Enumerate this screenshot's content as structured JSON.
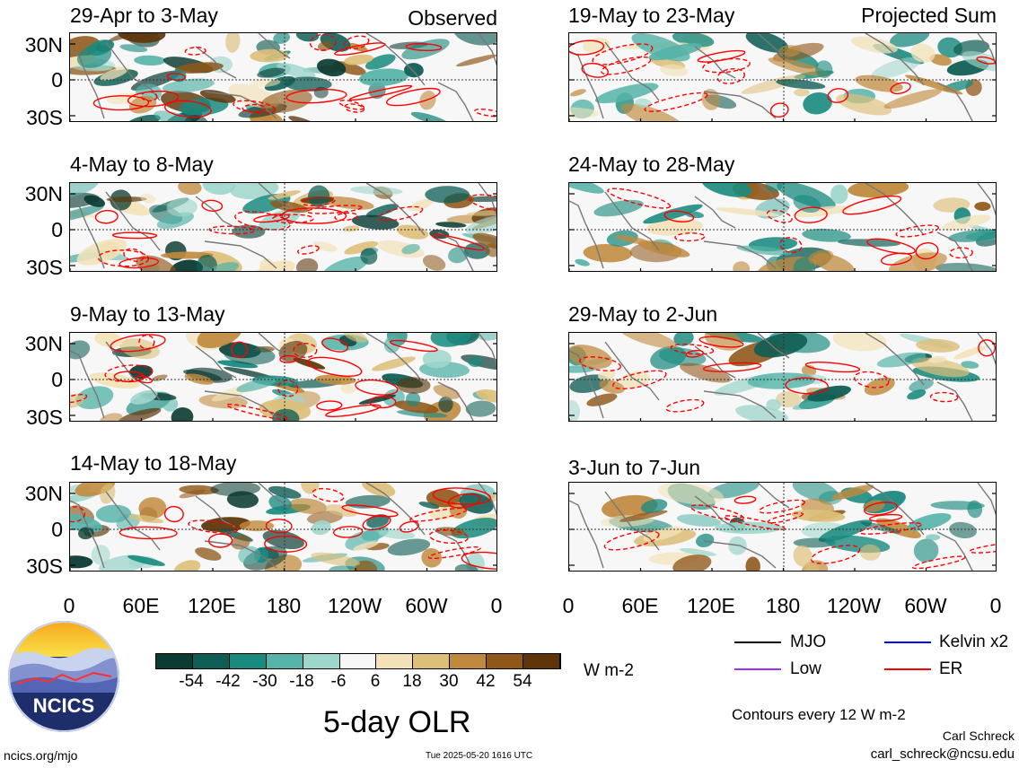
{
  "panels_left": [
    {
      "title": "29-Apr to 3-May",
      "corner": "Observed"
    },
    {
      "title": "4-May to 8-May",
      "corner": ""
    },
    {
      "title": "9-May to 13-May",
      "corner": ""
    },
    {
      "title": "14-May to 18-May",
      "corner": ""
    }
  ],
  "panels_right": [
    {
      "title": "19-May to 23-May",
      "corner": "Projected Sum"
    },
    {
      "title": "24-May to 28-May",
      "corner": ""
    },
    {
      "title": "29-May to 2-Jun",
      "corner": ""
    },
    {
      "title": "3-Jun to 7-Jun",
      "corner": ""
    }
  ],
  "lat_labels": [
    "30N",
    "0",
    "30S"
  ],
  "lon_labels": [
    "0",
    "60E",
    "120E",
    "180",
    "120W",
    "60W",
    "0"
  ],
  "colorbar": {
    "labels": [
      "-54",
      "-42",
      "-30",
      "-18",
      "-6",
      "6",
      "18",
      "30",
      "42",
      "54"
    ],
    "colors": [
      "#0b3b33",
      "#0f5e55",
      "#1a8a7f",
      "#55b3a8",
      "#9fd6cc",
      "#f7f7f7",
      "#f3e2b8",
      "#ddbf7a",
      "#c08a3e",
      "#8f5718",
      "#5e3509"
    ],
    "unit": "W m-2"
  },
  "chart_title": "5-day OLR",
  "legend": [
    {
      "label": "MJO",
      "color": "#000000"
    },
    {
      "label": "Kelvin x2",
      "color": "#0000ff"
    },
    {
      "label": "Low",
      "color": "#9b30ff"
    },
    {
      "label": "ER",
      "color": "#ff0000"
    }
  ],
  "contour_note": "Contours every 12 W m-2",
  "author": "Carl Schreck",
  "email": "carl_schreck@ncsu.edu",
  "site": "ncics.org/mjo",
  "timestamp": "Tue 2025-05-20 1616 UTC",
  "logo_text": "NCICS"
}
